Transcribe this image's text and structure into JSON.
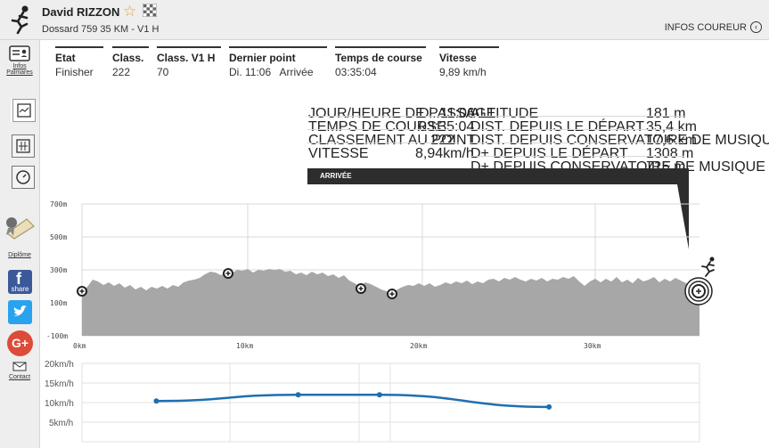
{
  "runner": {
    "name": "David RIZZON",
    "dossard": "Dossard 759  35 KM - V1 H",
    "infos_label": "INFOS COUREUR"
  },
  "sidebar": {
    "infos_palmares": "Infos",
    "infos_palmares2": "Palmares",
    "diplome": "Diplôme",
    "share": "share",
    "contact": "Contact"
  },
  "summary": [
    {
      "label": "Etat",
      "value": "Finisher"
    },
    {
      "label": "Class.",
      "value": "222"
    },
    {
      "label": "Class. V1 H",
      "value": "70"
    },
    {
      "label": "Dernier point",
      "value": "Di. 11:06   Arrivée"
    },
    {
      "label": "Temps de course",
      "value": "03:35:04"
    },
    {
      "label": "Vitesse",
      "value": "9,89 km/h"
    }
  ],
  "passage": {
    "left": [
      {
        "k": "JOUR/HEURE DE PASSAGE",
        "v": "Di. 11:06"
      },
      {
        "k": "TEMPS DE COURSE",
        "v": "03:35:04"
      },
      {
        "k": "CLASSEMENT AU POINT",
        "v": "222"
      },
      {
        "k": "VITESSE",
        "v": "8,94km/h"
      }
    ],
    "right": [
      {
        "k": "ALTITUDE",
        "v": "181 m"
      },
      {
        "k": "DIST. DEPUIS LE DÉPART",
        "v": "35,4 km"
      },
      {
        "k": "DIST. DEPUIS CONSERVATOIRE DE MUSIQUE",
        "v": "17,6 km"
      },
      {
        "k": "D+ DEPUIS LE DÉPART",
        "v": "1308 m"
      },
      {
        "k": "D+ DEPUIS CONSERVATOIRE DE MUSIQUE",
        "v": "715 m"
      }
    ],
    "point_name": "ARRIVÉE"
  },
  "profile": {
    "y_ticks": [
      "700m",
      "500m",
      "300m",
      "100m",
      "-100m"
    ],
    "x_ticks": [
      "0km",
      "10km",
      "20km",
      "30km"
    ]
  },
  "chart_data": {
    "type": "line",
    "y_ticks": [
      "20km/h",
      "15km/h",
      "10km/h",
      "5km/h"
    ],
    "ylim": [
      0,
      20
    ],
    "x_km": [
      4.3,
      12.5,
      17.2,
      27.0
    ],
    "values": [
      10.4,
      12.0,
      12.0,
      8.9
    ],
    "color": "#1f6fb0"
  }
}
